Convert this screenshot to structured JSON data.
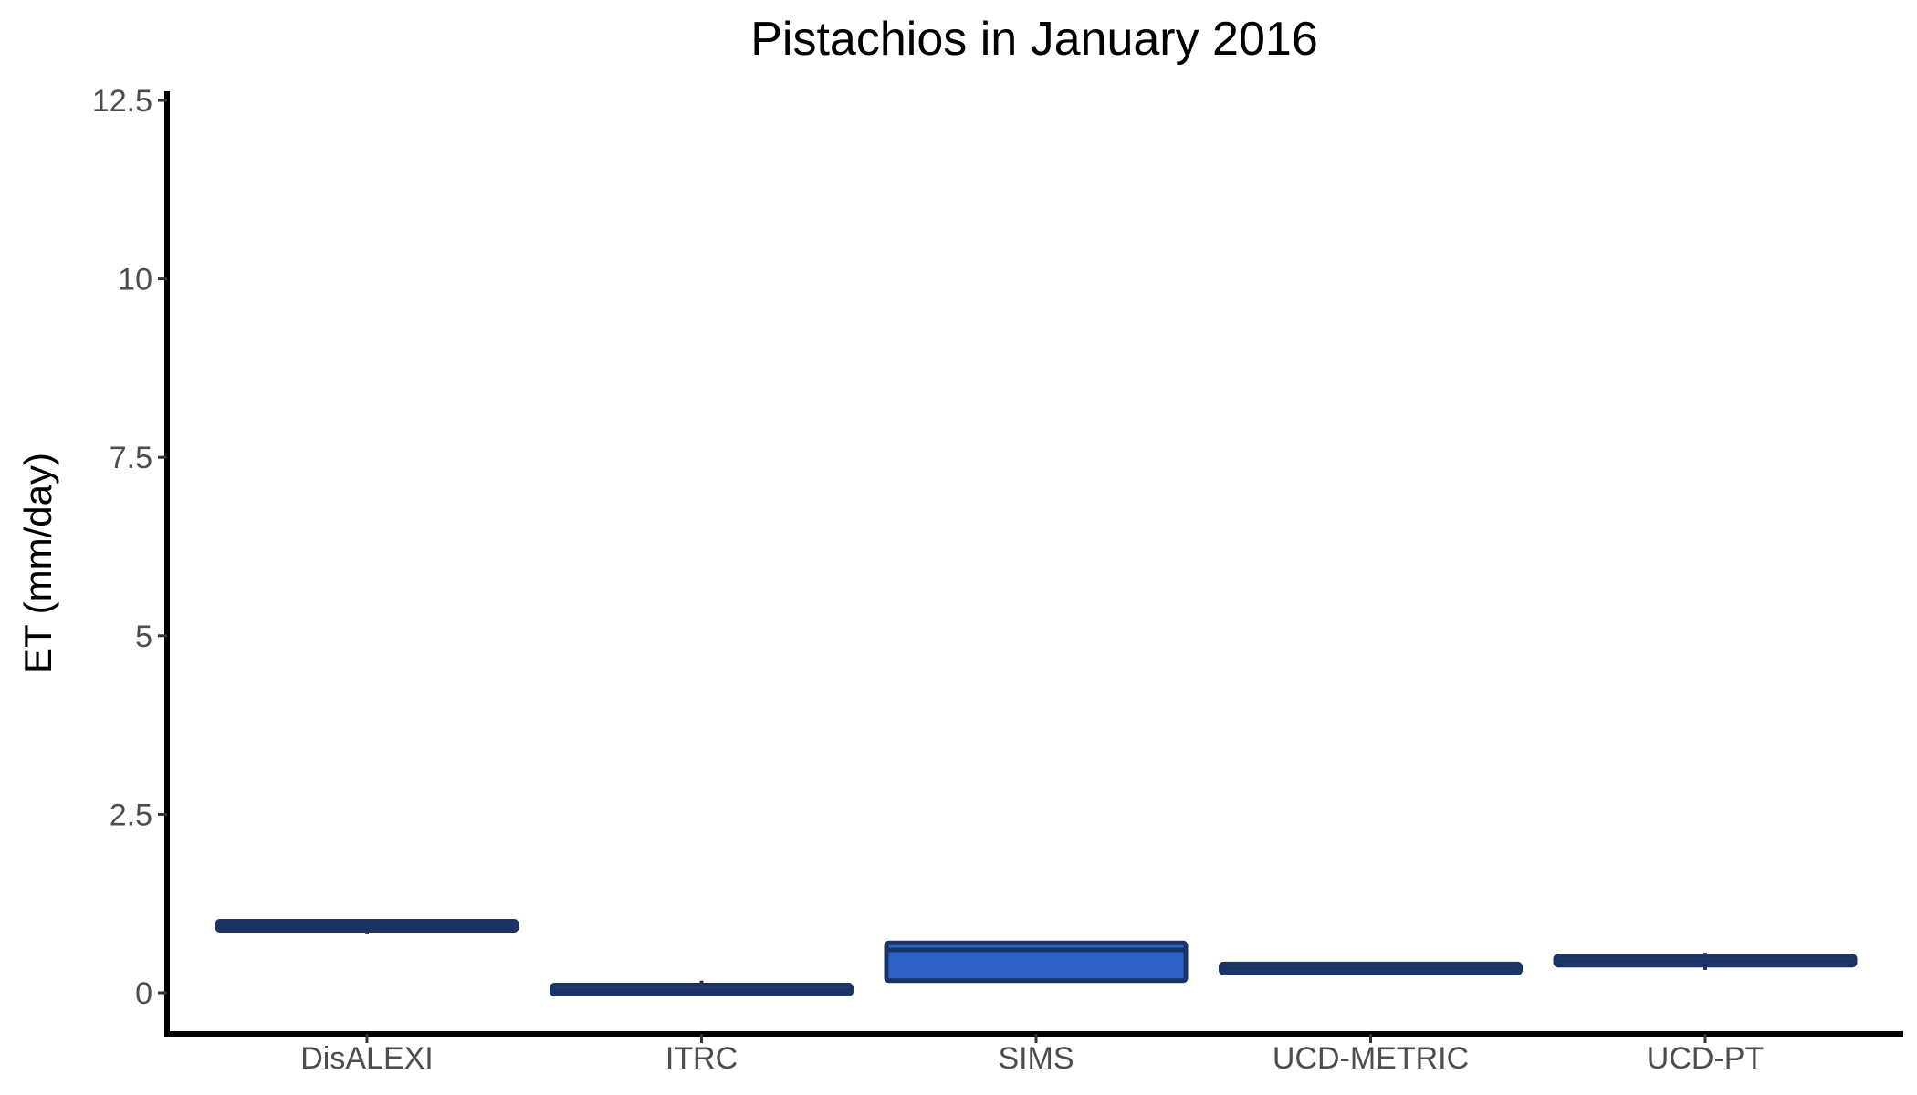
{
  "chart_data": {
    "type": "box",
    "title": "Pistachios in January 2016",
    "xlabel": "",
    "ylabel": "ET (mm/day)",
    "ylim": [
      -0.6,
      12.6
    ],
    "yticks": [
      0,
      2.5,
      5,
      7.5,
      10,
      12.5
    ],
    "ytick_labels": [
      "0",
      "2.5",
      "5",
      "7.5",
      "10",
      "12.5"
    ],
    "grid": false,
    "legend": "none",
    "categories": [
      "DisALEXI",
      "ITRC",
      "SIMS",
      "UCD-METRIC",
      "UCD-PT"
    ],
    "boxes": [
      {
        "category": "DisALEXI",
        "min": 0.82,
        "q1": 0.9,
        "median": 0.94,
        "q3": 0.98,
        "max": 1.02
      },
      {
        "category": "ITRC",
        "min": 0.0,
        "q1": 0.0,
        "median": 0.04,
        "q3": 0.09,
        "max": 0.17
      },
      {
        "category": "SIMS",
        "min": 0.17,
        "q1": 0.17,
        "median": 0.6,
        "q3": 0.7,
        "max": 0.7
      },
      {
        "category": "UCD-METRIC",
        "min": 0.28,
        "q1": 0.28,
        "median": 0.34,
        "q3": 0.4,
        "max": 0.4
      },
      {
        "category": "UCD-PT",
        "min": 0.32,
        "q1": 0.4,
        "median": 0.45,
        "q3": 0.5,
        "max": 0.56
      }
    ],
    "colors": {
      "box_fill": "#2f63c7",
      "box_outline": "#1c3366",
      "axis": "#000000"
    }
  }
}
